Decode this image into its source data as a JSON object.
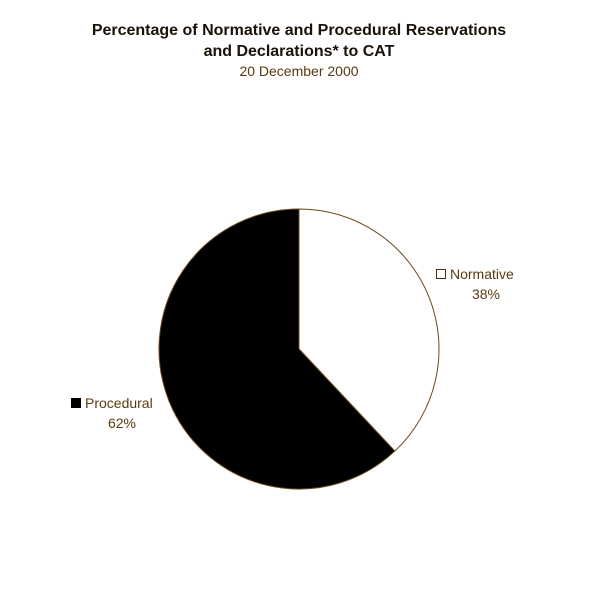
{
  "chart_data": {
    "type": "pie",
    "title_lines": [
      "Percentage of Normative and Procedural Reservations",
      "and Declarations* to CAT"
    ],
    "subtitle": "20 December 2000",
    "slices": [
      {
        "label": "Normative",
        "value": 38,
        "value_label": "38%",
        "color": "#ffffff"
      },
      {
        "label": "Procedural",
        "value": 62,
        "value_label": "62%",
        "color": "#000000"
      }
    ],
    "start": "12 o'clock",
    "direction": "clockwise",
    "outline_color": "#6b4a1e",
    "legend": "labels beside slices"
  }
}
